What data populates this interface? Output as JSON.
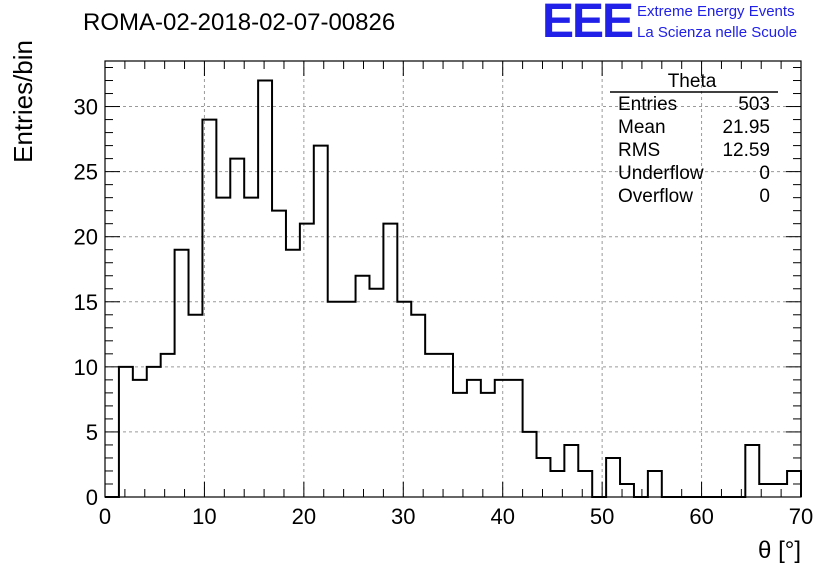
{
  "header": {
    "run_title": "ROMA-02-2018-02-07-00826",
    "logo_text": "EEE",
    "logo_line1": "Extreme Energy Events",
    "logo_line2": "La Scienza nelle Scuole",
    "logo_color": "#2020e8"
  },
  "stats_box": {
    "title": "Theta",
    "rows": [
      {
        "label": "Entries",
        "value": "503"
      },
      {
        "label": "Mean",
        "value": "21.95"
      },
      {
        "label": "RMS",
        "value": "12.59"
      },
      {
        "label": "Underflow",
        "value": "0"
      },
      {
        "label": "Overflow",
        "value": "0"
      }
    ]
  },
  "chart_data": {
    "type": "bar",
    "style": "step-histogram",
    "title": "ROMA-02-2018-02-07-00826",
    "xlabel": "θ [°]",
    "ylabel": "Entries/bin",
    "xlim": [
      0,
      70
    ],
    "ylim": [
      0,
      33.5
    ],
    "bin_width": 1.4,
    "bin_edges_start": 0,
    "values": [
      0,
      10,
      9,
      10,
      11,
      19,
      14,
      29,
      23,
      26,
      23,
      32,
      22,
      19,
      21,
      27,
      15,
      15,
      17,
      16,
      21,
      15,
      14,
      11,
      11,
      8,
      9,
      8,
      9,
      9,
      5,
      3,
      2,
      4,
      2,
      0,
      3,
      1,
      0,
      2,
      0,
      0,
      0,
      0,
      0,
      0,
      4,
      1,
      1,
      2
    ],
    "x_ticks": [
      "0",
      "10",
      "20",
      "30",
      "40",
      "50",
      "60",
      "70"
    ],
    "y_ticks": [
      "0",
      "5",
      "10",
      "15",
      "20",
      "25",
      "30"
    ],
    "grid": true,
    "line_color": "#000000"
  }
}
